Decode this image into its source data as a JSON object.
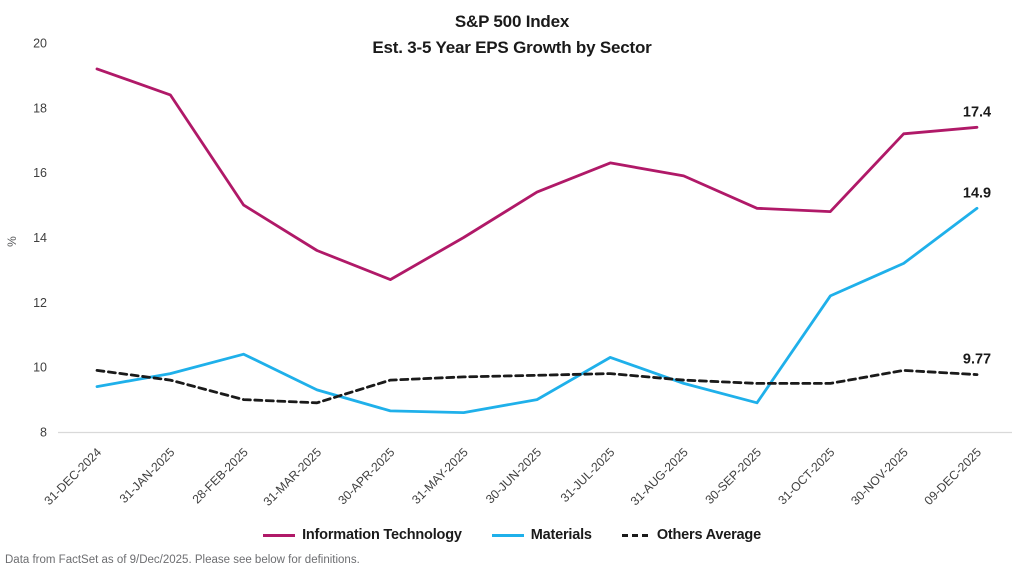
{
  "title": {
    "line1": "S&P 500 Index",
    "line2": "Est. 3-5 Year EPS Growth by Sector"
  },
  "footer": "Data from FactSet as of 9/Dec/2025. Please see below for definitions.",
  "chart_data": {
    "type": "line",
    "title": "S&P 500 Index — Est. 3-5 Year EPS Growth by Sector",
    "xlabel": "",
    "ylabel": "%",
    "ylim": [
      8,
      20
    ],
    "yticks": [
      8,
      10,
      12,
      14,
      16,
      18,
      20
    ],
    "grid": false,
    "legend_position": "bottom",
    "categories": [
      "31-DEC-2024",
      "31-JAN-2025",
      "28-FEB-2025",
      "31-MAR-2025",
      "30-APR-2025",
      "31-MAY-2025",
      "30-JUN-2025",
      "31-JUL-2025",
      "31-AUG-2025",
      "30-SEP-2025",
      "31-OCT-2025",
      "30-NOV-2025",
      "09-DEC-2025"
    ],
    "series": [
      {
        "name": "Information Technology",
        "color": "#B01968",
        "dash": false,
        "values": [
          19.2,
          18.4,
          15.0,
          13.6,
          12.7,
          14.0,
          15.4,
          16.3,
          15.9,
          14.9,
          14.8,
          17.2,
          17.4
        ],
        "end_label": "17.4"
      },
      {
        "name": "Materials",
        "color": "#1FB0EA",
        "dash": false,
        "values": [
          9.4,
          9.8,
          10.4,
          9.3,
          8.65,
          8.6,
          9.0,
          10.3,
          9.5,
          8.9,
          12.2,
          13.2,
          14.9
        ],
        "end_label": "14.9"
      },
      {
        "name": "Others Average",
        "color": "#1a1a1a",
        "dash": true,
        "values": [
          9.9,
          9.6,
          9.0,
          8.9,
          9.6,
          9.7,
          9.75,
          9.8,
          9.6,
          9.5,
          9.5,
          9.9,
          9.77
        ],
        "end_label": "9.77"
      }
    ],
    "colors": {
      "axis_line": "#d9d9d9",
      "tick_label": "#3f3f3f",
      "ylabel": "#58595b",
      "end_label": "#1a1a1a"
    }
  }
}
